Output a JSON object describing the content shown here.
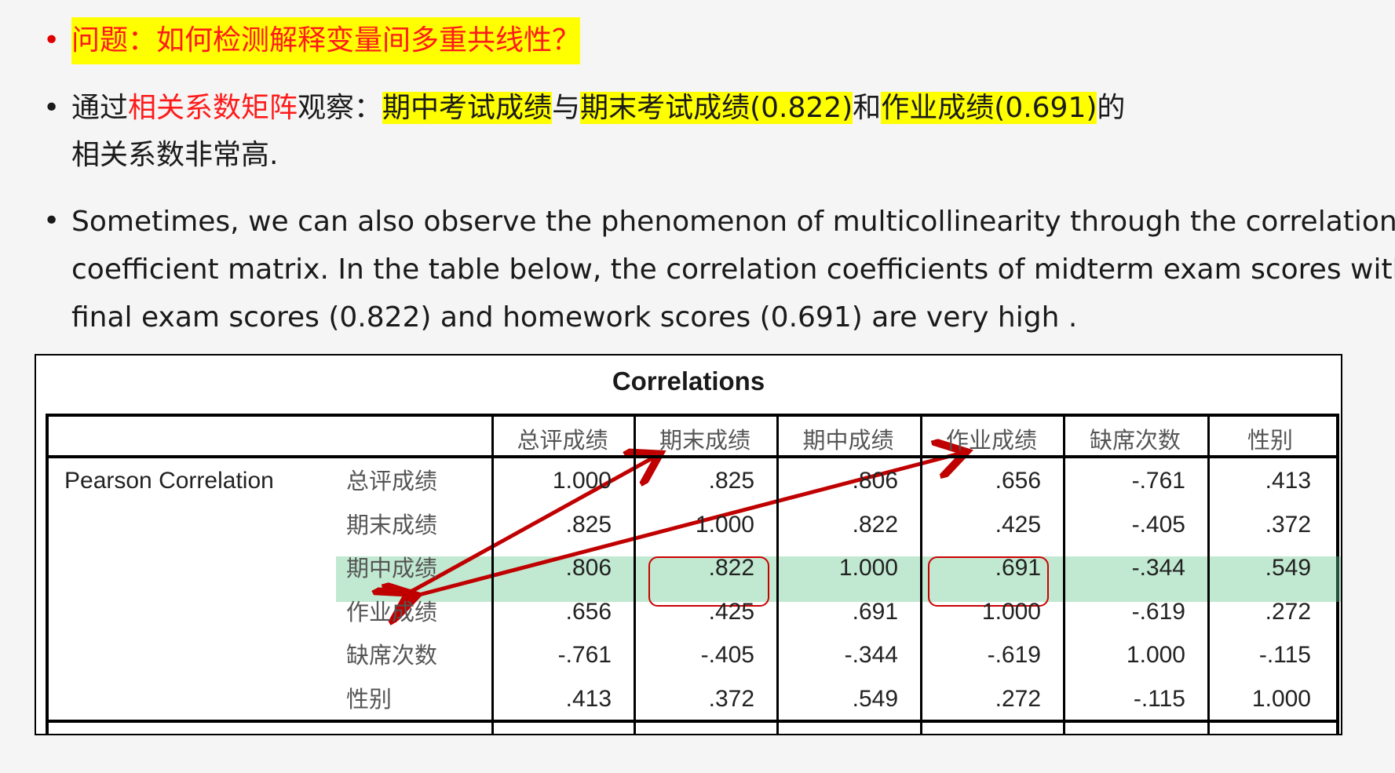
{
  "bullets": [
    {
      "dot": "•",
      "segments": [
        {
          "text": "问题：如何检测解释变量间多重共线性？",
          "style": "red-hl"
        }
      ]
    },
    {
      "dot": "•",
      "segments": [
        {
          "text": "通过",
          "style": "plain"
        },
        {
          "text": "相关系数矩阵",
          "style": "red"
        },
        {
          "text": "观察：",
          "style": "plain"
        },
        {
          "text": "期中考试成绩",
          "style": "hl"
        },
        {
          "text": "与",
          "style": "plain"
        },
        {
          "text": "期末考试成绩(0.822)",
          "style": "hl"
        },
        {
          "text": "和",
          "style": "plain"
        },
        {
          "text": "作业成绩(0.691)",
          "style": "hl"
        },
        {
          "text": "的",
          "style": "plain"
        }
      ],
      "line2": "相关系数非常高."
    },
    {
      "dot": "•",
      "lines": [
        "Sometimes, we can also observe the phenomenon of multicollinearity through the correlation",
        "coefficient matrix. In the table below, the correlation coefficients of midterm exam scores with",
        "final exam scores (0.822) and homework scores (0.691) are very high ."
      ]
    }
  ],
  "table": {
    "title": "Correlations",
    "group_label": "Pearson Correlation",
    "columns": [
      "总评成绩",
      "期末成绩",
      "期中成绩",
      "作业成绩",
      "缺席次数",
      "性别"
    ],
    "rows": [
      {
        "label": "总评成绩",
        "values": [
          "1.000",
          ".825",
          ".806",
          ".656",
          "-.761",
          ".413"
        ]
      },
      {
        "label": "期末成绩",
        "values": [
          ".825",
          "1.000",
          ".822",
          ".425",
          "-.405",
          ".372"
        ]
      },
      {
        "label": "期中成绩",
        "values": [
          ".806",
          ".822",
          "1.000",
          ".691",
          "-.344",
          ".549"
        ]
      },
      {
        "label": "作业成绩",
        "values": [
          ".656",
          ".425",
          ".691",
          "1.000",
          "-.619",
          ".272"
        ]
      },
      {
        "label": "缺席次数",
        "values": [
          "-.761",
          "-.405",
          "-.344",
          "-.619",
          "1.000",
          "-.115"
        ]
      },
      {
        "label": "性别",
        "values": [
          ".413",
          ".372",
          ".549",
          ".272",
          "-.115",
          "1.000"
        ]
      }
    ]
  },
  "colors": {
    "red_text": "#ff1a1a",
    "highlight": "#ffff00",
    "arrow": "#c00000",
    "band": "#64c88c"
  }
}
